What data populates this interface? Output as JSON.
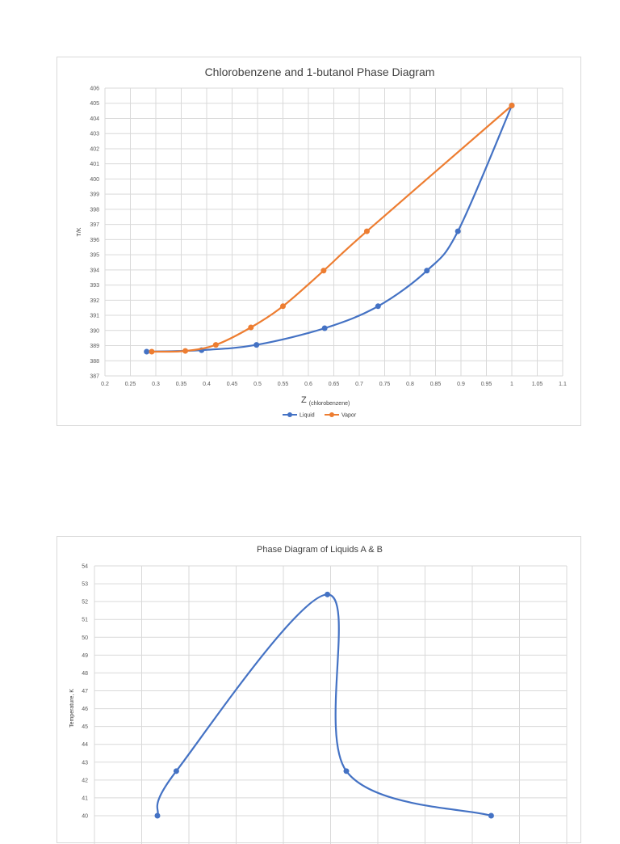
{
  "chart_data": [
    {
      "type": "line",
      "title": "Chlorobenzene and 1-butanol Phase Diagram",
      "xlabel_main": "Z",
      "xlabel_sub": "(chlorobenzene)",
      "ylabel": "T/K",
      "xlim": [
        0.2,
        1.1
      ],
      "xticks": [
        "0.2",
        "0.25",
        "0.3",
        "0.35",
        "0.4",
        "0.45",
        "0.5",
        "0.55",
        "0.6",
        "0.65",
        "0.7",
        "0.75",
        "0.8",
        "0.85",
        "0.9",
        "0.95",
        "1",
        "1.05",
        "1.1"
      ],
      "ylim": [
        387,
        406
      ],
      "yticks": [
        "387",
        "388",
        "389",
        "390",
        "391",
        "392",
        "393",
        "394",
        "395",
        "396",
        "397",
        "398",
        "399",
        "400",
        "401",
        "402",
        "403",
        "404",
        "405",
        "406"
      ],
      "grid": true,
      "legend_position": "bottom",
      "series": [
        {
          "name": "Liquid",
          "color": "#4472c4",
          "x": [
            0.282,
            0.39,
            0.498,
            0.632,
            0.737,
            0.833,
            0.894,
            1.0
          ],
          "y": [
            388.6,
            388.7,
            389.05,
            390.15,
            391.6,
            393.95,
            396.55,
            404.85
          ]
        },
        {
          "name": "Vapor",
          "color": "#ed7d31",
          "x": [
            0.292,
            0.358,
            0.418,
            0.487,
            0.55,
            0.63,
            0.715,
            1.0
          ],
          "y": [
            388.6,
            388.65,
            389.05,
            390.2,
            391.6,
            393.95,
            396.55,
            404.85
          ]
        }
      ]
    },
    {
      "type": "line",
      "title": "Phase Diagram of Liquids A & B",
      "ylabel": "Temperature, K",
      "ylim": [
        40,
        54
      ],
      "yticks": [
        "40",
        "41",
        "42",
        "43",
        "44",
        "45",
        "46",
        "47",
        "48",
        "49",
        "50",
        "51",
        "52",
        "53",
        "54"
      ],
      "grid": true,
      "series": [
        {
          "color": "#4472c4",
          "x": [
            0.2,
            0.26,
            0.74,
            0.8,
            1.26
          ],
          "y": [
            40,
            42.5,
            52.4,
            42.5,
            40
          ]
        }
      ]
    }
  ]
}
